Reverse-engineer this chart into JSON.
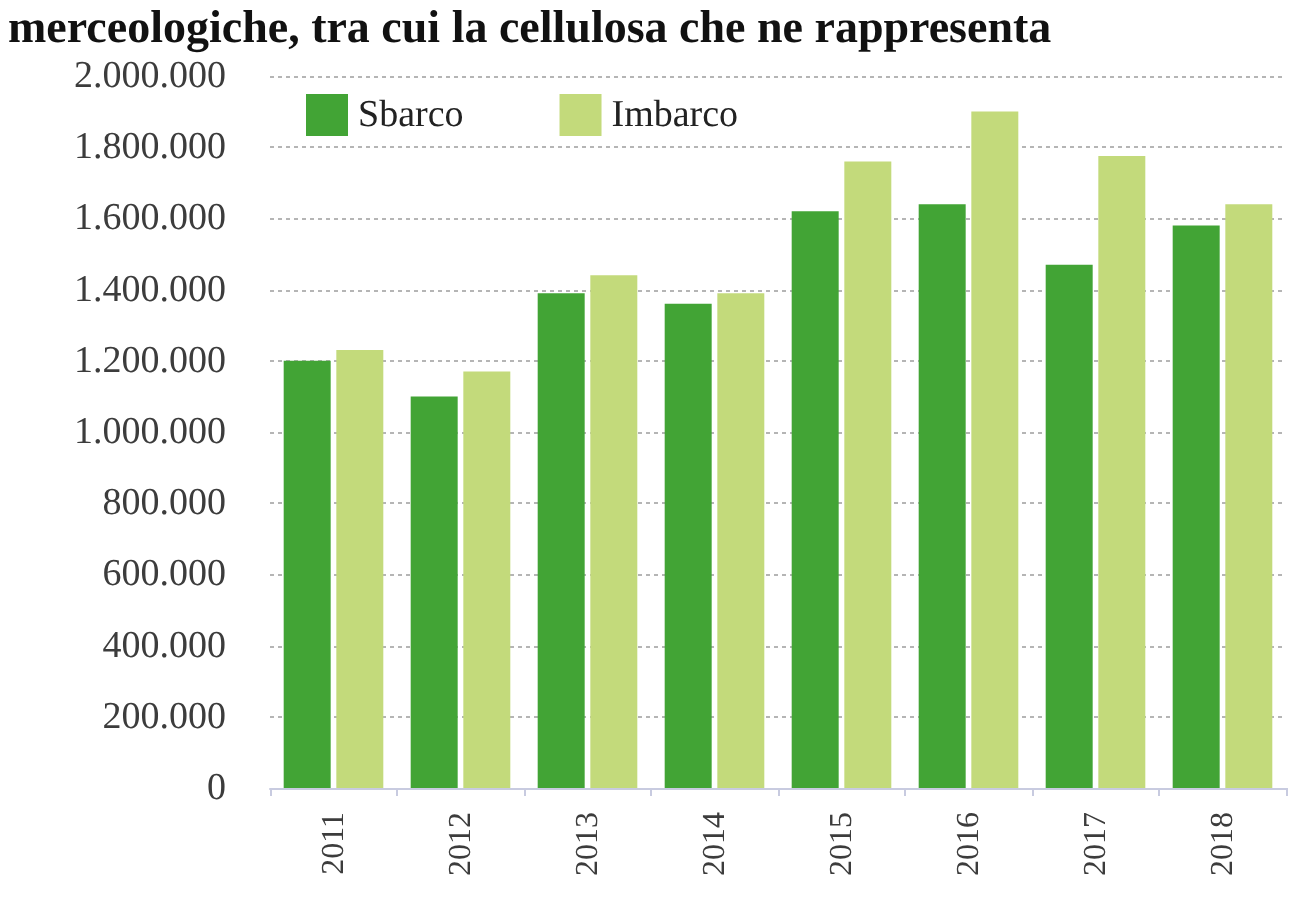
{
  "chart_data": {
    "type": "bar",
    "annotations": [
      "merceologiche, tra cui la cellulosa che ne rappresenta"
    ],
    "categories": [
      "2011",
      "2012",
      "2013",
      "2014",
      "2015",
      "2016",
      "2017",
      "2018"
    ],
    "series": [
      {
        "name": "Sbarco",
        "color": "#42a435",
        "values": [
          1200000,
          1100000,
          1390000,
          1360000,
          1620000,
          1640000,
          1470000,
          1580000
        ]
      },
      {
        "name": "Imbarco",
        "color": "#c3da7b",
        "values": [
          1230000,
          1170000,
          1440000,
          1390000,
          1760000,
          1900000,
          1775000,
          1640000
        ]
      }
    ],
    "ylim": [
      0,
      2000000
    ],
    "yticks": [
      0,
      {
        "value": 200000,
        "label": "200.000"
      },
      {
        "value": 400000,
        "label": "400.000"
      },
      {
        "value": 600000,
        "label": "600.000"
      },
      {
        "value": 800000,
        "label": "800.000"
      },
      {
        "value": 1000000,
        "label": "1.000.000"
      },
      {
        "value": 1200000,
        "label": "1.200.000"
      },
      {
        "value": 1400000,
        "label": "1.400.000"
      },
      {
        "value": 1600000,
        "label": "1.600.000"
      },
      {
        "value": 1800000,
        "label": "1.800.000"
      },
      {
        "value": 2000000,
        "label": "2.000.000"
      }
    ],
    "grid": "y",
    "legend": "top left"
  }
}
